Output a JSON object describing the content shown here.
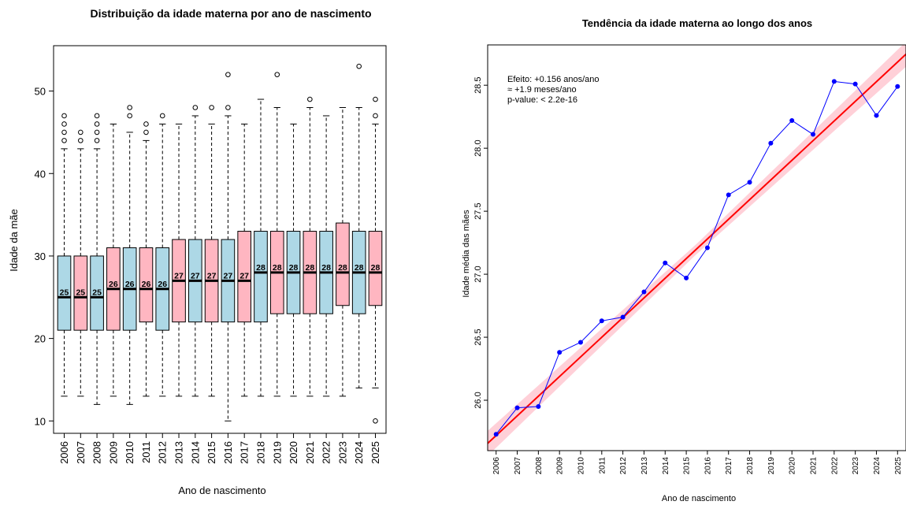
{
  "chart_data": [
    {
      "type": "boxplot",
      "title": "Distribuição da idade materna por ano de nascimento",
      "xlabel": "Ano de nascimento",
      "ylabel": "Idade da mãe",
      "ylim": [
        8.5,
        55.5
      ],
      "yticks": [
        10,
        20,
        30,
        40,
        50
      ],
      "colors": [
        "#add8e6",
        "#ffb6c1"
      ],
      "boxes": [
        {
          "year": "2006",
          "q1": 21,
          "median": 25,
          "q3": 30,
          "lower": 13,
          "upper": 43,
          "outliers": [
            44,
            45,
            46,
            47
          ]
        },
        {
          "year": "2007",
          "q1": 21,
          "median": 25,
          "q3": 30,
          "lower": 13,
          "upper": 43,
          "outliers": [
            44,
            45
          ]
        },
        {
          "year": "2008",
          "q1": 21,
          "median": 25,
          "q3": 30,
          "lower": 12,
          "upper": 43,
          "outliers": [
            44,
            45,
            46,
            47
          ]
        },
        {
          "year": "2009",
          "q1": 21,
          "median": 26,
          "q3": 31,
          "lower": 13,
          "upper": 46,
          "outliers": []
        },
        {
          "year": "2010",
          "q1": 21,
          "median": 26,
          "q3": 31,
          "lower": 12,
          "upper": 45,
          "outliers": [
            47,
            48
          ]
        },
        {
          "year": "2011",
          "q1": 22,
          "median": 26,
          "q3": 31,
          "lower": 13,
          "upper": 44,
          "outliers": [
            45,
            46
          ]
        },
        {
          "year": "2012",
          "q1": 21,
          "median": 26,
          "q3": 31,
          "lower": 13,
          "upper": 46,
          "outliers": [
            47
          ]
        },
        {
          "year": "2013",
          "q1": 22,
          "median": 27,
          "q3": 32,
          "lower": 13,
          "upper": 46,
          "outliers": []
        },
        {
          "year": "2014",
          "q1": 22,
          "median": 27,
          "q3": 32,
          "lower": 13,
          "upper": 47,
          "outliers": [
            48
          ]
        },
        {
          "year": "2015",
          "q1": 22,
          "median": 27,
          "q3": 32,
          "lower": 13,
          "upper": 46,
          "outliers": [
            48
          ]
        },
        {
          "year": "2016",
          "q1": 22,
          "median": 27,
          "q3": 32,
          "lower": 10,
          "upper": 47,
          "outliers": [
            48,
            52
          ]
        },
        {
          "year": "2017",
          "q1": 22,
          "median": 27,
          "q3": 33,
          "lower": 13,
          "upper": 46,
          "outliers": []
        },
        {
          "year": "2018",
          "q1": 22,
          "median": 28,
          "q3": 33,
          "lower": 13,
          "upper": 49,
          "outliers": []
        },
        {
          "year": "2019",
          "q1": 23,
          "median": 28,
          "q3": 33,
          "lower": 13,
          "upper": 48,
          "outliers": [
            52
          ]
        },
        {
          "year": "2020",
          "q1": 23,
          "median": 28,
          "q3": 33,
          "lower": 13,
          "upper": 46,
          "outliers": []
        },
        {
          "year": "2021",
          "q1": 23,
          "median": 28,
          "q3": 33,
          "lower": 13,
          "upper": 48,
          "outliers": [
            49
          ]
        },
        {
          "year": "2022",
          "q1": 23,
          "median": 28,
          "q3": 33,
          "lower": 13,
          "upper": 47,
          "outliers": []
        },
        {
          "year": "2023",
          "q1": 24,
          "median": 28,
          "q3": 34,
          "lower": 13,
          "upper": 48,
          "outliers": []
        },
        {
          "year": "2024",
          "q1": 23,
          "median": 28,
          "q3": 33,
          "lower": 14,
          "upper": 48,
          "outliers": [
            53
          ]
        },
        {
          "year": "2025",
          "q1": 24,
          "median": 28,
          "q3": 33,
          "lower": 14,
          "upper": 46,
          "outliers": [
            10,
            47,
            49
          ]
        }
      ]
    },
    {
      "type": "line",
      "title": "Tendência da idade materna ao longo dos anos",
      "xlabel": "Ano de nascimento",
      "ylabel": "Idade média das mães",
      "xlim": [
        2005.6,
        2025.4
      ],
      "ylim": [
        25.6,
        28.82
      ],
      "yticks": [
        26.0,
        26.5,
        27.0,
        27.5,
        28.0,
        28.5
      ],
      "x": [
        2006,
        2007,
        2008,
        2009,
        2010,
        2011,
        2012,
        2013,
        2014,
        2015,
        2016,
        2017,
        2018,
        2019,
        2020,
        2021,
        2022,
        2023,
        2024,
        2025
      ],
      "series": [
        {
          "values": [
            25.73,
            25.94,
            25.95,
            26.38,
            26.46,
            26.63,
            26.66,
            26.86,
            27.09,
            26.97,
            27.21,
            27.63,
            27.73,
            28.04,
            28.22,
            28.11,
            28.53,
            28.51,
            28.26,
            28.49
          ],
          "color": "#0000ff"
        }
      ],
      "trend": {
        "slope": 0.156,
        "intercept_2006": 25.72,
        "color": "#ff0000",
        "band_color": "#ffc0cb"
      },
      "annotation": [
        "Efeito: +0.156 anos/ano",
        "≈ +1.9 meses/ano",
        "p-value: < 2.2e-16"
      ]
    }
  ]
}
